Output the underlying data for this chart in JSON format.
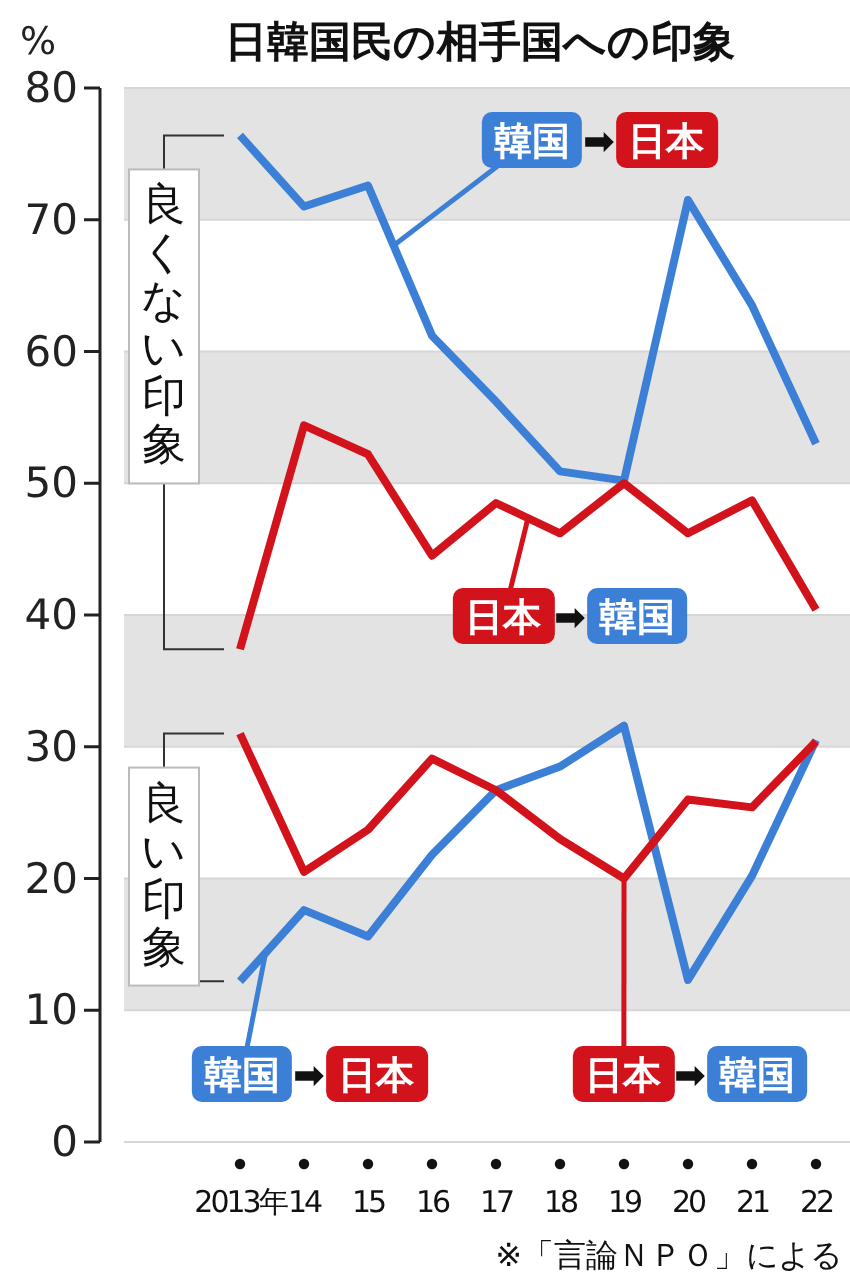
{
  "chart_data": {
    "type": "line",
    "title": "日韓国民の相手国への印象",
    "ylabel": "%",
    "categories": [
      "2013年",
      "14",
      "15",
      "16",
      "17",
      "18",
      "19",
      "20",
      "21",
      "22"
    ],
    "ylim": [
      0,
      80
    ],
    "yticks": [
      0,
      10,
      20,
      30,
      40,
      50,
      60,
      70,
      80
    ],
    "grid": "y",
    "line_style": "solid",
    "series": [
      {
        "name": "韓国 ➡ 日本",
        "color": "#3c7fd6",
        "values": [
          76.4,
          71,
          72.6,
          61.2,
          56.2,
          50.9,
          50.2,
          71.5,
          63.5,
          53
        ]
      },
      {
        "name": "日本 ➡ 韓国",
        "color": "#d3131b",
        "values": [
          37.4,
          54.4,
          52.2,
          44.5,
          48.5,
          46.2,
          50,
          46.2,
          48.7,
          40.4
        ]
      },
      {
        "name": "韓国 ➡ 日本",
        "color": "#3c7fd6",
        "values": [
          12.2,
          17.6,
          15.6,
          21.8,
          26.7,
          28.5,
          31.6,
          12.3,
          20.2,
          30.5
        ]
      },
      {
        "name": "日本 ➡ 韓国",
        "color": "#d3131b",
        "values": [
          31,
          20.5,
          23.7,
          29.1,
          26.7,
          23,
          20,
          26,
          25.4,
          30.4
        ]
      }
    ],
    "annotations": [
      "良くない印象",
      "良い印象",
      "※「言論ＮＰＯ」による"
    ]
  }
}
